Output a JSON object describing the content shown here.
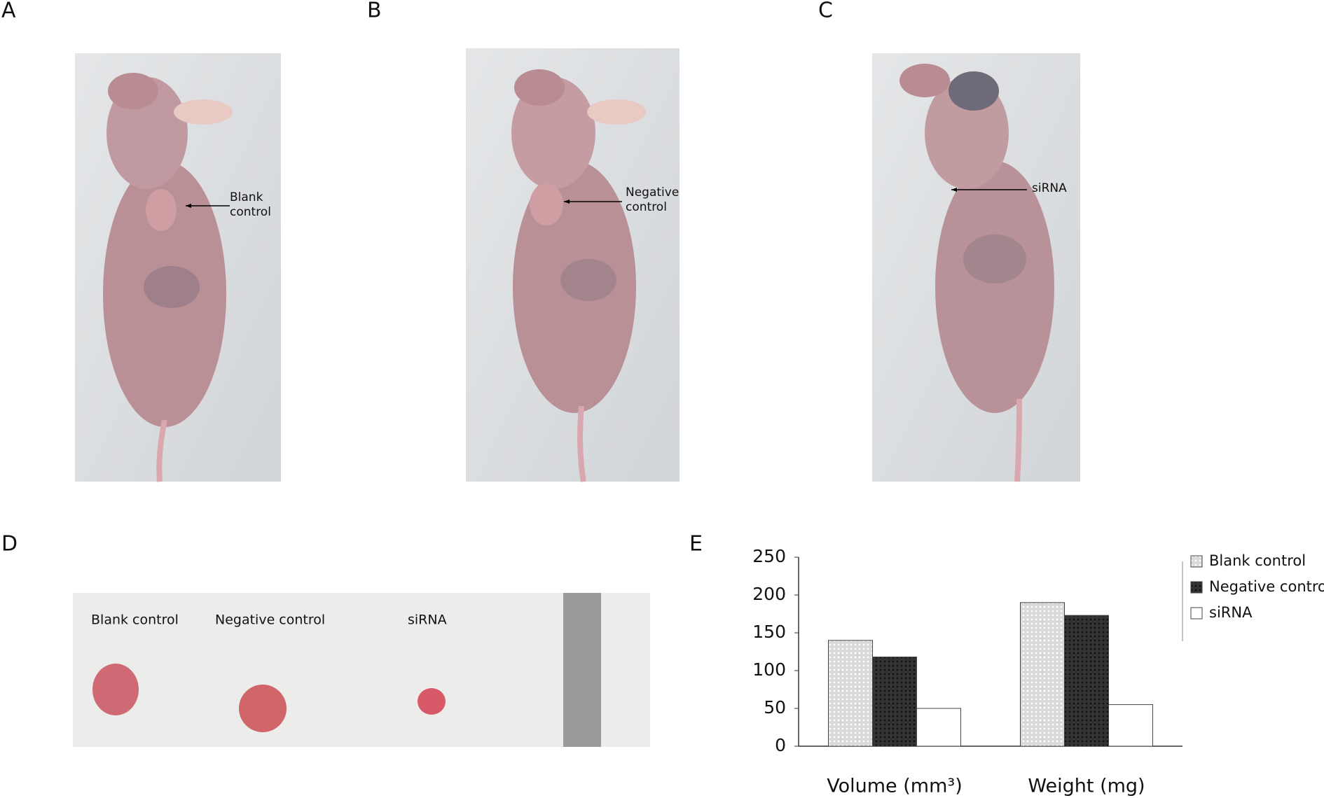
{
  "panels": [
    {
      "label": "A",
      "annotation": [
        "Blank",
        "control"
      ]
    },
    {
      "label": "B",
      "annotation": [
        "Negative",
        "control"
      ]
    },
    {
      "label": "C",
      "annotation": [
        "siRNA"
      ]
    },
    {
      "label": "D",
      "samples": [
        "Blank control",
        "Negative control",
        "siRNA"
      ]
    },
    {
      "label": "E"
    }
  ],
  "chart_data": {
    "type": "bar",
    "categories": [
      "Volume (mm³)",
      "Weight (mg)"
    ],
    "series": [
      {
        "name": "Blank control",
        "color": "#d9d9d9",
        "values": [
          140,
          190
        ]
      },
      {
        "name": "Negative control",
        "color": "#333333",
        "values": [
          118,
          173
        ]
      },
      {
        "name": "siRNA",
        "color": "#ffffff",
        "values": [
          50,
          55
        ]
      }
    ],
    "ylim": [
      0,
      250
    ],
    "yticks": [
      0,
      50,
      100,
      150,
      200,
      250
    ],
    "legend": "right"
  }
}
